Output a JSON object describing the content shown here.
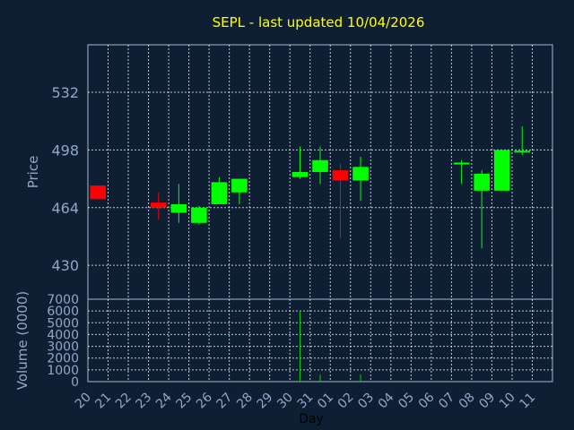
{
  "chart_data": [
    {
      "type": "candlestick",
      "title": "SEPL - last updated 10/04/2026",
      "xlabel": "",
      "ylabel": "Price",
      "yticks": [
        430,
        464,
        498,
        532
      ],
      "ylim": [
        410,
        560
      ],
      "categories": [
        "20",
        "21",
        "22",
        "23",
        "24",
        "25",
        "26",
        "27",
        "28",
        "29",
        "30",
        "31",
        "01",
        "02",
        "03",
        "04",
        "05",
        "06",
        "07",
        "08",
        "09",
        "10",
        "11"
      ],
      "candles": [
        {
          "x": "20",
          "open": 477,
          "close": 469,
          "high": 477,
          "low": 469
        },
        {
          "x": "23",
          "open": 467,
          "close": 464,
          "high": 473,
          "low": 457
        },
        {
          "x": "24",
          "open": 461,
          "close": 466,
          "high": 478,
          "low": 455
        },
        {
          "x": "25",
          "open": 455,
          "close": 464,
          "high": 465,
          "low": 454
        },
        {
          "x": "26",
          "open": 466,
          "close": 479,
          "high": 482,
          "low": 466
        },
        {
          "x": "27",
          "open": 473,
          "close": 481,
          "high": 481,
          "low": 466
        },
        {
          "x": "30",
          "open": 482,
          "close": 485,
          "high": 500,
          "low": 481
        },
        {
          "x": "31",
          "open": 485,
          "close": 492,
          "high": 500,
          "low": 478
        },
        {
          "x": "01",
          "open": 486,
          "close": 480,
          "high": 490,
          "low": 446
        },
        {
          "x": "02",
          "open": 480,
          "close": 488,
          "high": 494,
          "low": 468
        },
        {
          "x": "07",
          "open": 490,
          "close": 490,
          "high": 492,
          "low": 478
        },
        {
          "x": "08",
          "open": 474,
          "close": 484,
          "high": 486,
          "low": 440
        },
        {
          "x": "09",
          "open": 474,
          "close": 498,
          "high": 498,
          "low": 474
        },
        {
          "x": "10",
          "open": 497,
          "close": 497,
          "high": 512,
          "low": 495
        }
      ],
      "colors": {
        "up": "#00ff00",
        "down": "#ff0000"
      }
    },
    {
      "type": "bar",
      "xlabel": "Day",
      "ylabel": "Volume (0000)",
      "yticks": [
        0,
        1000,
        2000,
        3000,
        4000,
        5000,
        6000,
        7000
      ],
      "ylim": [
        0,
        7000
      ],
      "categories": [
        "20",
        "21",
        "22",
        "23",
        "24",
        "25",
        "26",
        "27",
        "28",
        "29",
        "30",
        "31",
        "01",
        "02",
        "03",
        "04",
        "05",
        "06",
        "07",
        "08",
        "09",
        "10",
        "11"
      ],
      "values": [
        0,
        0,
        0,
        0,
        0,
        0,
        0,
        0,
        0,
        0,
        6000,
        600,
        0,
        600,
        0,
        0,
        0,
        0,
        0,
        0,
        0,
        0,
        0
      ],
      "colors": {
        "bar": "#00cc00"
      }
    }
  ]
}
